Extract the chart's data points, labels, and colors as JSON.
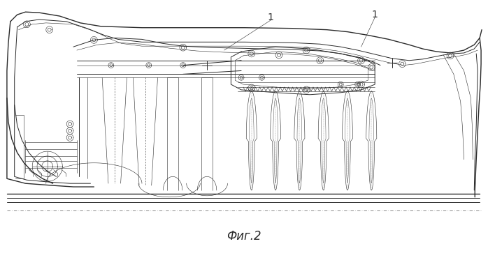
{
  "title": "Фиг.2",
  "label_1": "1",
  "bg_color": "#ffffff",
  "line_color": "#2a2a2a",
  "title_fontsize": 12,
  "fig_width": 6.98,
  "fig_height": 3.63,
  "dpi": 100
}
